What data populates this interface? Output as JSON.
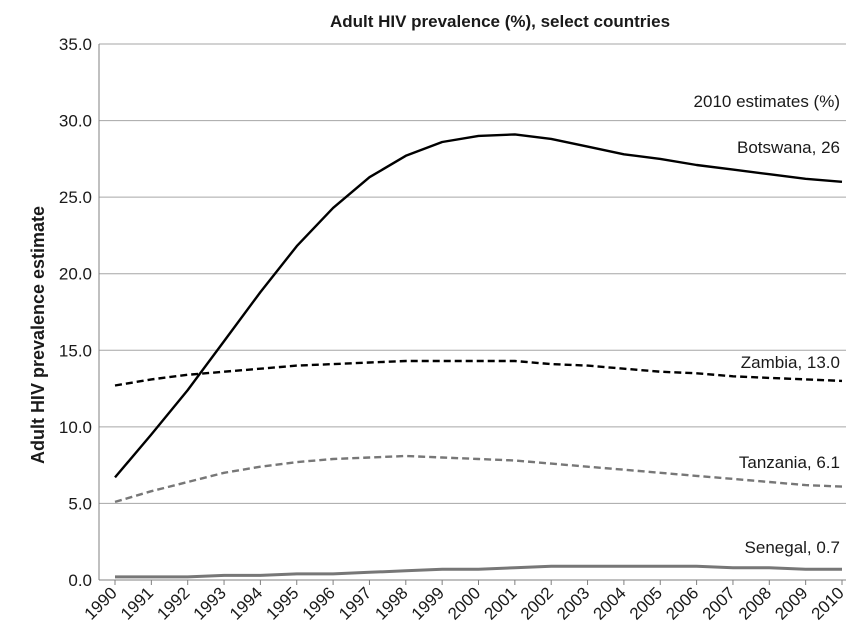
{
  "chart_data": {
    "type": "line",
    "title": "Adult HIV prevalence (%), select countries",
    "xlabel": "",
    "ylabel": "Adult HIV prevalence estimate",
    "ylim": [
      0,
      35
    ],
    "y_ticks": [
      "0.0",
      "5.0",
      "10.0",
      "15.0",
      "20.0",
      "25.0",
      "30.0",
      "35.0"
    ],
    "categories": [
      "1990",
      "1991",
      "1992",
      "1993",
      "1994",
      "1995",
      "1996",
      "1997",
      "1998",
      "1999",
      "2000",
      "2001",
      "2002",
      "2003",
      "2004",
      "2005",
      "2006",
      "2007",
      "2008",
      "2009",
      "2010"
    ],
    "grid": true,
    "annotation_header": "2010 estimates (%)",
    "series": [
      {
        "name": "Botswana",
        "end_label": "Botswana, 26",
        "color": "#000000",
        "style": "solid",
        "values": [
          6.7,
          9.5,
          12.4,
          15.6,
          18.8,
          21.8,
          24.3,
          26.3,
          27.7,
          28.6,
          29.0,
          29.1,
          28.8,
          28.3,
          27.8,
          27.5,
          27.1,
          26.8,
          26.5,
          26.2,
          26.0
        ]
      },
      {
        "name": "Zambia",
        "end_label": "Zambia, 13.0",
        "color": "#000000",
        "style": "dashed",
        "values": [
          12.7,
          13.1,
          13.4,
          13.6,
          13.8,
          14.0,
          14.1,
          14.2,
          14.3,
          14.3,
          14.3,
          14.3,
          14.1,
          14.0,
          13.8,
          13.6,
          13.5,
          13.3,
          13.2,
          13.1,
          13.0
        ]
      },
      {
        "name": "Tanzania",
        "end_label": "Tanzania, 6.1",
        "color": "#777777",
        "style": "dashed",
        "values": [
          5.1,
          5.8,
          6.4,
          7.0,
          7.4,
          7.7,
          7.9,
          8.0,
          8.1,
          8.0,
          7.9,
          7.8,
          7.6,
          7.4,
          7.2,
          7.0,
          6.8,
          6.6,
          6.4,
          6.2,
          6.1
        ]
      },
      {
        "name": "Senegal",
        "end_label": "Senegal, 0.7",
        "color": "#777777",
        "style": "solid",
        "values": [
          0.2,
          0.2,
          0.2,
          0.3,
          0.3,
          0.4,
          0.4,
          0.5,
          0.6,
          0.7,
          0.7,
          0.8,
          0.9,
          0.9,
          0.9,
          0.9,
          0.9,
          0.8,
          0.8,
          0.7,
          0.7
        ]
      }
    ]
  }
}
